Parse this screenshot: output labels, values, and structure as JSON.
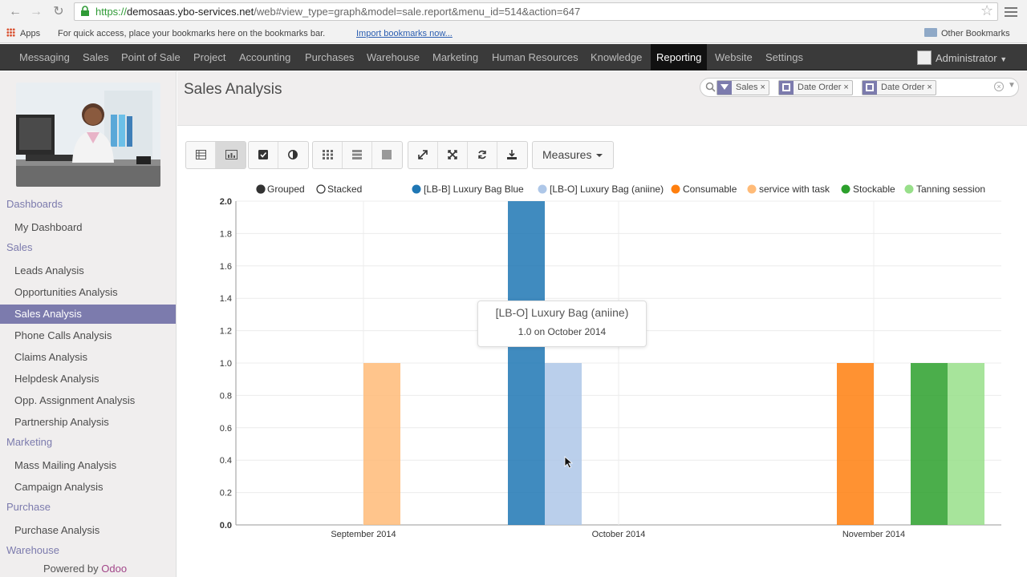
{
  "browser": {
    "url_prefix": "https://",
    "url_domain": "demosaas.ybo-services.net",
    "url_rest": "/web#view_type=graph&model=sale.report&menu_id=514&action=647",
    "bookmarks": {
      "apps": "Apps",
      "hint": "For quick access, place your bookmarks here on the bookmarks bar.",
      "import_link": "Import bookmarks now...",
      "other": "Other Bookmarks"
    }
  },
  "topbar": {
    "menus": [
      "Messaging",
      "Sales",
      "Point of Sale",
      "Project",
      "Accounting",
      "Purchases",
      "Warehouse",
      "Marketing",
      "Human Resources",
      "Knowledge",
      "Reporting",
      "Website",
      "Settings"
    ],
    "active": "Reporting",
    "user": "Administrator"
  },
  "sidebar": {
    "sections": [
      {
        "title": "Dashboards",
        "items": [
          "My Dashboard"
        ]
      },
      {
        "title": "Sales",
        "items": [
          "Leads Analysis",
          "Opportunities Analysis",
          "Sales Analysis",
          "Phone Calls Analysis",
          "Claims Analysis",
          "Helpdesk Analysis",
          "Opp. Assignment Analysis",
          "Partnership Analysis"
        ]
      },
      {
        "title": "Marketing",
        "items": [
          "Mass Mailing Analysis",
          "Campaign Analysis"
        ]
      },
      {
        "title": "Purchase",
        "items": [
          "Purchase Analysis"
        ]
      },
      {
        "title": "Warehouse",
        "items": []
      }
    ],
    "active_item": "Sales Analysis",
    "powered_prefix": "Powered by ",
    "powered_brand": "Odoo"
  },
  "page": {
    "title": "Sales Analysis",
    "facets": [
      {
        "icon": "funnel-icon",
        "label": "Sales"
      },
      {
        "icon": "group-by-icon",
        "label": "Date Order"
      },
      {
        "icon": "group-by-icon",
        "label": "Date Order"
      }
    ],
    "facet_close": "×",
    "measures_label": "Measures"
  },
  "toolbar": {
    "view_buttons": [
      "list-view-icon",
      "graph-view-icon"
    ],
    "chart_buttons": [
      "bar-chart-icon",
      "pie-chart-icon"
    ],
    "layout_buttons": [
      "pivot-grid-icon",
      "list-rows-icon",
      "square-icon"
    ],
    "action_buttons": [
      "expand-icon",
      "collapse-icon",
      "swap-axis-icon",
      "download-icon"
    ]
  },
  "chart_data": {
    "type": "bar",
    "legend_modes": [
      "Grouped",
      "Stacked"
    ],
    "active_mode": "Grouped",
    "categories": [
      "September 2014",
      "October 2014",
      "November 2014"
    ],
    "ylim": [
      0,
      2.0
    ],
    "yticks": [
      "0.0",
      "0.2",
      "0.4",
      "0.6",
      "0.8",
      "1.0",
      "1.2",
      "1.4",
      "1.6",
      "1.8",
      "2.0"
    ],
    "grid": true,
    "series": [
      {
        "name": "[LB-B] Luxury Bag Blue",
        "color": "#1f77b4",
        "values": [
          0,
          2,
          0
        ]
      },
      {
        "name": "[LB-O] Luxury Bag (aniine)",
        "color": "#aec7e8",
        "values": [
          0,
          1,
          0
        ]
      },
      {
        "name": "Consumable",
        "color": "#ff7f0e",
        "values": [
          0,
          0,
          1
        ]
      },
      {
        "name": "service with task",
        "color": "#ffbb78",
        "values": [
          1,
          0,
          0
        ]
      },
      {
        "name": "Stockable",
        "color": "#2ca02c",
        "values": [
          0,
          0,
          1
        ]
      },
      {
        "name": "Tanning session",
        "color": "#98df8a",
        "values": [
          0,
          0,
          1
        ]
      }
    ],
    "tooltip": {
      "title": "[LB-O] Luxury Bag (aniine)",
      "value": "1.0 on October 2014"
    }
  }
}
